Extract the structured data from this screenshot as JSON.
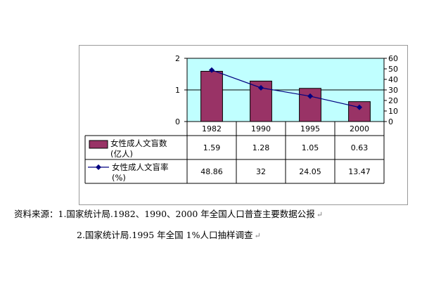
{
  "chart_data": {
    "type": "bar",
    "categories": [
      "1982",
      "1990",
      "1995",
      "2000"
    ],
    "series": [
      {
        "name": "女性成人文盲数\n(亿人)",
        "type": "bar",
        "axis": "left",
        "values": [
          1.59,
          1.28,
          1.05,
          0.63
        ],
        "value_labels": [
          "1.59",
          "1.28",
          "1.05",
          "0.63"
        ],
        "color": "#993366"
      },
      {
        "name": "女性成人文盲率\n(%)",
        "type": "line",
        "axis": "right",
        "values": [
          48.86,
          32,
          24.05,
          13.47
        ],
        "value_labels": [
          "48.86",
          "32",
          "24.05",
          "13.47"
        ],
        "color": "#000080"
      }
    ],
    "y_left": {
      "range": [
        0,
        2
      ],
      "ticks": [
        "0",
        "1",
        "2"
      ]
    },
    "y_right": {
      "range": [
        0,
        60
      ],
      "ticks": [
        "0",
        "10",
        "20",
        "30",
        "40",
        "50",
        "60"
      ]
    },
    "plot_background": "#c0ffff",
    "legend": "data-table"
  },
  "source": {
    "line1": "资料来源：1.国家统计局.1982、1990、2000 年全国人口普查主要数据公报",
    "line2": "2.国家统计局.1995 年全国 1%人口抽样调查",
    "para_mark": "↵"
  }
}
